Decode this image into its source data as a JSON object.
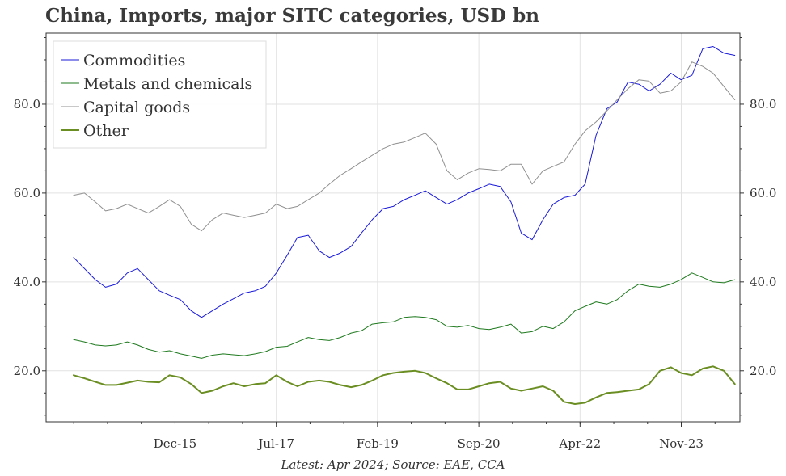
{
  "chart_data": {
    "type": "line",
    "title": "China, Imports, major SITC categories, USD bn",
    "footer": "Latest: Apr 2024; Source: EAE, CCA",
    "xlabel": "",
    "ylabel": "",
    "ylim": [
      8.5,
      96
    ],
    "y_ticks": [
      20,
      40,
      60,
      80
    ],
    "y_tick_labels": [
      "20.0",
      "40.0",
      "60.0",
      "80.0"
    ],
    "x_range": [
      2013.9,
      2024.75
    ],
    "x_ticks": [
      2015.917,
      2017.5,
      2019.083,
      2020.667,
      2022.25,
      2023.833
    ],
    "x_tick_labels": [
      "Dec-15",
      "Jul-17",
      "Feb-19",
      "Sep-20",
      "Apr-22",
      "Nov-23"
    ],
    "grid": true,
    "legend_position": "top-left",
    "series": [
      {
        "name": "Commodities",
        "color": "#1a1adb",
        "width": 1,
        "points": [
          [
            2014.33,
            45.5
          ],
          [
            2014.5,
            43
          ],
          [
            2014.67,
            40.5
          ],
          [
            2014.83,
            38.8
          ],
          [
            2015.0,
            39.5
          ],
          [
            2015.17,
            42
          ],
          [
            2015.33,
            43
          ],
          [
            2015.5,
            40.5
          ],
          [
            2015.67,
            38
          ],
          [
            2015.83,
            37
          ],
          [
            2016.0,
            36
          ],
          [
            2016.17,
            33.5
          ],
          [
            2016.33,
            32
          ],
          [
            2016.5,
            33.5
          ],
          [
            2016.67,
            35
          ],
          [
            2016.83,
            36.2
          ],
          [
            2017.0,
            37.5
          ],
          [
            2017.17,
            38
          ],
          [
            2017.33,
            39
          ],
          [
            2017.5,
            42
          ],
          [
            2017.67,
            46
          ],
          [
            2017.83,
            50
          ],
          [
            2018.0,
            50.5
          ],
          [
            2018.17,
            47
          ],
          [
            2018.33,
            45.5
          ],
          [
            2018.5,
            46.5
          ],
          [
            2018.67,
            48
          ],
          [
            2018.83,
            51
          ],
          [
            2019.0,
            54
          ],
          [
            2019.17,
            56.5
          ],
          [
            2019.33,
            57
          ],
          [
            2019.5,
            58.5
          ],
          [
            2019.67,
            59.5
          ],
          [
            2019.83,
            60.5
          ],
          [
            2020.0,
            59
          ],
          [
            2020.17,
            57.5
          ],
          [
            2020.33,
            58.5
          ],
          [
            2020.5,
            60
          ],
          [
            2020.67,
            61
          ],
          [
            2020.83,
            62
          ],
          [
            2021.0,
            61.5
          ],
          [
            2021.17,
            58
          ],
          [
            2021.33,
            51
          ],
          [
            2021.5,
            49.5
          ],
          [
            2021.67,
            54
          ],
          [
            2021.83,
            57.5
          ],
          [
            2022.0,
            59
          ],
          [
            2022.17,
            59.5
          ],
          [
            2022.33,
            62
          ],
          [
            2022.5,
            73
          ],
          [
            2022.67,
            79
          ],
          [
            2022.83,
            80.5
          ],
          [
            2023.0,
            85
          ],
          [
            2023.17,
            84.5
          ],
          [
            2023.33,
            83
          ],
          [
            2023.5,
            84.5
          ],
          [
            2023.67,
            87
          ],
          [
            2023.83,
            85.5
          ],
          [
            2024.0,
            86.5
          ],
          [
            2024.17,
            92.5
          ],
          [
            2024.33,
            93
          ],
          [
            2024.5,
            91.5
          ],
          [
            2024.67,
            91
          ]
        ]
      },
      {
        "name": "Metals and chemicals",
        "color": "#1f7a1f",
        "width": 1,
        "points": [
          [
            2014.33,
            27
          ],
          [
            2014.5,
            26.5
          ],
          [
            2014.67,
            25.8
          ],
          [
            2014.83,
            25.6
          ],
          [
            2015.0,
            25.8
          ],
          [
            2015.17,
            26.5
          ],
          [
            2015.33,
            25.8
          ],
          [
            2015.5,
            24.8
          ],
          [
            2015.67,
            24.2
          ],
          [
            2015.83,
            24.5
          ],
          [
            2016.0,
            23.8
          ],
          [
            2016.17,
            23.3
          ],
          [
            2016.33,
            22.8
          ],
          [
            2016.5,
            23.5
          ],
          [
            2016.67,
            23.8
          ],
          [
            2016.83,
            23.6
          ],
          [
            2017.0,
            23.4
          ],
          [
            2017.17,
            23.8
          ],
          [
            2017.33,
            24.3
          ],
          [
            2017.5,
            25.3
          ],
          [
            2017.67,
            25.5
          ],
          [
            2017.83,
            26.5
          ],
          [
            2018.0,
            27.5
          ],
          [
            2018.17,
            27
          ],
          [
            2018.33,
            26.8
          ],
          [
            2018.5,
            27.5
          ],
          [
            2018.67,
            28.5
          ],
          [
            2018.83,
            29
          ],
          [
            2019.0,
            30.5
          ],
          [
            2019.17,
            30.8
          ],
          [
            2019.33,
            31
          ],
          [
            2019.5,
            32
          ],
          [
            2019.67,
            32.2
          ],
          [
            2019.83,
            32
          ],
          [
            2020.0,
            31.5
          ],
          [
            2020.17,
            30
          ],
          [
            2020.33,
            29.8
          ],
          [
            2020.5,
            30.2
          ],
          [
            2020.67,
            29.5
          ],
          [
            2020.83,
            29.3
          ],
          [
            2021.0,
            29.8
          ],
          [
            2021.17,
            30.5
          ],
          [
            2021.33,
            28.5
          ],
          [
            2021.5,
            28.8
          ],
          [
            2021.67,
            30
          ],
          [
            2021.83,
            29.5
          ],
          [
            2022.0,
            31
          ],
          [
            2022.17,
            33.5
          ],
          [
            2022.33,
            34.5
          ],
          [
            2022.5,
            35.5
          ],
          [
            2022.67,
            35
          ],
          [
            2022.83,
            36
          ],
          [
            2023.0,
            38
          ],
          [
            2023.17,
            39.5
          ],
          [
            2023.33,
            39
          ],
          [
            2023.5,
            38.8
          ],
          [
            2023.67,
            39.5
          ],
          [
            2023.83,
            40.5
          ],
          [
            2024.0,
            42
          ],
          [
            2024.17,
            41
          ],
          [
            2024.33,
            40
          ],
          [
            2024.5,
            39.8
          ],
          [
            2024.67,
            40.5
          ]
        ]
      },
      {
        "name": "Capital goods",
        "color": "#909090",
        "width": 1,
        "points": [
          [
            2014.33,
            59.5
          ],
          [
            2014.5,
            60
          ],
          [
            2014.67,
            58
          ],
          [
            2014.83,
            56
          ],
          [
            2015.0,
            56.5
          ],
          [
            2015.17,
            57.5
          ],
          [
            2015.33,
            56.5
          ],
          [
            2015.5,
            55.5
          ],
          [
            2015.67,
            57
          ],
          [
            2015.83,
            58.5
          ],
          [
            2016.0,
            57
          ],
          [
            2016.17,
            53
          ],
          [
            2016.33,
            51.5
          ],
          [
            2016.5,
            54
          ],
          [
            2016.67,
            55.5
          ],
          [
            2016.83,
            55
          ],
          [
            2017.0,
            54.5
          ],
          [
            2017.17,
            55
          ],
          [
            2017.33,
            55.5
          ],
          [
            2017.5,
            57.5
          ],
          [
            2017.67,
            56.5
          ],
          [
            2017.83,
            57
          ],
          [
            2018.0,
            58.5
          ],
          [
            2018.17,
            60
          ],
          [
            2018.33,
            62
          ],
          [
            2018.5,
            64
          ],
          [
            2018.67,
            65.5
          ],
          [
            2018.83,
            67
          ],
          [
            2019.0,
            68.5
          ],
          [
            2019.17,
            70
          ],
          [
            2019.33,
            71
          ],
          [
            2019.5,
            71.5
          ],
          [
            2019.67,
            72.5
          ],
          [
            2019.83,
            73.5
          ],
          [
            2020.0,
            71
          ],
          [
            2020.17,
            65
          ],
          [
            2020.33,
            63
          ],
          [
            2020.5,
            64.5
          ],
          [
            2020.67,
            65.5
          ],
          [
            2020.83,
            65.3
          ],
          [
            2021.0,
            65
          ],
          [
            2021.17,
            66.5
          ],
          [
            2021.33,
            66.5
          ],
          [
            2021.5,
            62
          ],
          [
            2021.67,
            65
          ],
          [
            2021.83,
            66
          ],
          [
            2022.0,
            67
          ],
          [
            2022.17,
            71
          ],
          [
            2022.33,
            74
          ],
          [
            2022.5,
            76
          ],
          [
            2022.67,
            78.5
          ],
          [
            2022.83,
            81
          ],
          [
            2023.0,
            83.5
          ],
          [
            2023.17,
            85.5
          ],
          [
            2023.33,
            85.2
          ],
          [
            2023.5,
            82.5
          ],
          [
            2023.67,
            83
          ],
          [
            2023.83,
            85
          ],
          [
            2024.0,
            89.5
          ],
          [
            2024.17,
            88.5
          ],
          [
            2024.33,
            87
          ],
          [
            2024.5,
            84
          ],
          [
            2024.67,
            81
          ]
        ]
      },
      {
        "name": "Other",
        "color": "#6b8e23",
        "width": 2,
        "points": [
          [
            2014.33,
            19
          ],
          [
            2014.5,
            18.3
          ],
          [
            2014.67,
            17.5
          ],
          [
            2014.83,
            16.8
          ],
          [
            2015.0,
            16.8
          ],
          [
            2015.17,
            17.3
          ],
          [
            2015.33,
            17.8
          ],
          [
            2015.5,
            17.5
          ],
          [
            2015.67,
            17.4
          ],
          [
            2015.83,
            19
          ],
          [
            2016.0,
            18.5
          ],
          [
            2016.17,
            17
          ],
          [
            2016.33,
            15
          ],
          [
            2016.5,
            15.5
          ],
          [
            2016.67,
            16.5
          ],
          [
            2016.83,
            17.2
          ],
          [
            2017.0,
            16.5
          ],
          [
            2017.17,
            17
          ],
          [
            2017.33,
            17.2
          ],
          [
            2017.5,
            19
          ],
          [
            2017.67,
            17.5
          ],
          [
            2017.83,
            16.5
          ],
          [
            2018.0,
            17.5
          ],
          [
            2018.17,
            17.8
          ],
          [
            2018.33,
            17.5
          ],
          [
            2018.5,
            16.8
          ],
          [
            2018.67,
            16.3
          ],
          [
            2018.83,
            16.8
          ],
          [
            2019.0,
            17.8
          ],
          [
            2019.17,
            19
          ],
          [
            2019.33,
            19.5
          ],
          [
            2019.5,
            19.8
          ],
          [
            2019.67,
            20
          ],
          [
            2019.83,
            19.5
          ],
          [
            2020.0,
            18.3
          ],
          [
            2020.17,
            17.2
          ],
          [
            2020.33,
            15.8
          ],
          [
            2020.5,
            15.8
          ],
          [
            2020.67,
            16.5
          ],
          [
            2020.83,
            17.2
          ],
          [
            2021.0,
            17.5
          ],
          [
            2021.17,
            16
          ],
          [
            2021.33,
            15.5
          ],
          [
            2021.5,
            16
          ],
          [
            2021.67,
            16.5
          ],
          [
            2021.83,
            15.5
          ],
          [
            2022.0,
            13
          ],
          [
            2022.17,
            12.5
          ],
          [
            2022.33,
            12.8
          ],
          [
            2022.5,
            14
          ],
          [
            2022.67,
            15
          ],
          [
            2022.83,
            15.2
          ],
          [
            2023.0,
            15.5
          ],
          [
            2023.17,
            15.8
          ],
          [
            2023.33,
            17
          ],
          [
            2023.5,
            20
          ],
          [
            2023.67,
            20.8
          ],
          [
            2023.83,
            19.5
          ],
          [
            2024.0,
            19
          ],
          [
            2024.17,
            20.5
          ],
          [
            2024.33,
            21
          ],
          [
            2024.5,
            20
          ],
          [
            2024.67,
            17
          ]
        ]
      }
    ]
  }
}
